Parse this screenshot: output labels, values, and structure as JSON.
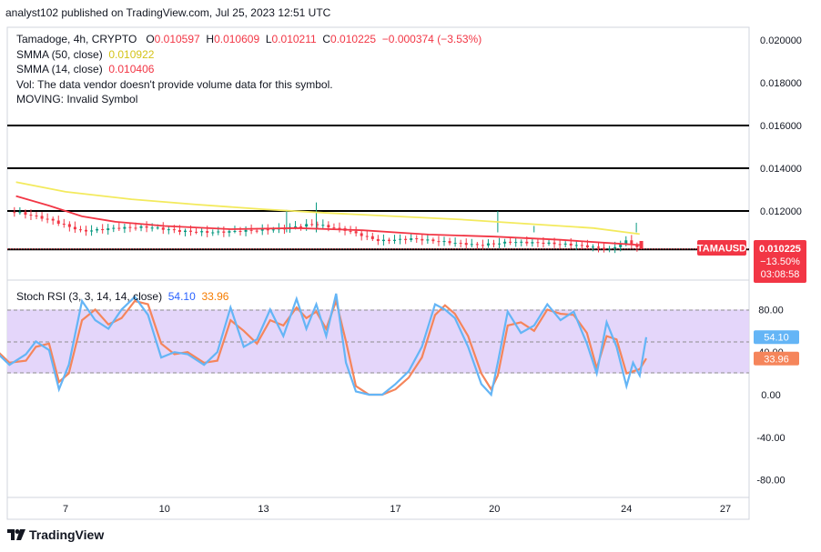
{
  "header": {
    "published": "analyst102 published on TradingView.com, Jul 25, 2023 12:51 UTC"
  },
  "legend": {
    "symbol": "Tamadoge, 4h, CRYPTO",
    "open_label": "O",
    "open": "0.010597",
    "high_label": "H",
    "high": "0.010609",
    "low_label": "L",
    "low": "0.010211",
    "close_label": "C",
    "close": "0.010225",
    "change": "−0.000374 (−3.53%)",
    "smma50_label": "SMMA (50, close)",
    "smma50_value": "0.010922",
    "smma14_label": "SMMA (14, close)",
    "smma14_value": "0.010406",
    "vol_note": "Vol: The data vendor doesn't provide volume data for this symbol.",
    "moving_note": "MOVING: Invalid Symbol",
    "stoch_label": "Stoch RSI (3, 3, 14, 14, close)",
    "stoch_k": "54.10",
    "stoch_d": "33.96"
  },
  "price_tag": {
    "symbol": "TAMAUSD",
    "price": "0.010225",
    "change_pct": "−13.50%",
    "countdown": "03:08:58"
  },
  "branding": {
    "logo_text": "TradingView"
  },
  "colors": {
    "up": "#089981",
    "down": "#f23645",
    "smma50": "#f3ea5d",
    "smma14": "#f23645",
    "stoch_k": "#64b5f6",
    "stoch_d": "#f5855b",
    "stoch_band": "#e1d1f9",
    "hline": "#000000"
  },
  "chart_data": [
    {
      "type": "line",
      "title": "Tamadoge, 4h, CRYPTO",
      "x_ticks": [
        "7",
        "10",
        "13",
        "17",
        "20",
        "24",
        "27"
      ],
      "y_ticks": [
        "0.020000",
        "0.018000",
        "0.016000",
        "0.014000",
        "0.012000"
      ],
      "ylim": [
        0.0095,
        0.0205
      ],
      "horizontal_lines": [
        0.016,
        0.014,
        0.012,
        0.0102
      ],
      "series": [
        {
          "name": "SMMA (50, close)",
          "color": "#f3ea5d",
          "x": [
            5.5,
            7,
            9,
            11,
            13,
            15,
            17,
            19,
            21,
            23,
            24.4
          ],
          "values": [
            0.01335,
            0.0129,
            0.01255,
            0.0123,
            0.01208,
            0.0119,
            0.01175,
            0.0116,
            0.0114,
            0.0112,
            0.01092
          ]
        },
        {
          "name": "SMMA (14, close)",
          "color": "#f23645",
          "x": [
            5.5,
            6.5,
            7.5,
            8.5,
            10,
            12,
            14,
            16,
            18,
            20,
            22,
            23.5,
            24.4
          ],
          "values": [
            0.0127,
            0.01225,
            0.01175,
            0.0115,
            0.0113,
            0.01115,
            0.0112,
            0.0111,
            0.0109,
            0.0108,
            0.01065,
            0.0105,
            0.01041
          ]
        },
        {
          "name": "Price",
          "color": "#089981",
          "x": [
            5.5,
            6.5,
            7.5,
            8.5,
            9.5,
            10.5,
            11.5,
            12.5,
            13.5,
            14.5,
            15.5,
            16.5,
            17.5,
            18.5,
            19.5,
            20.5,
            21.5,
            22.5,
            23.5,
            24,
            24.4
          ],
          "values": [
            0.01195,
            0.0116,
            0.01105,
            0.0112,
            0.01125,
            0.01105,
            0.011,
            0.01108,
            0.01115,
            0.0114,
            0.0111,
            0.0106,
            0.0107,
            0.01055,
            0.0104,
            0.01055,
            0.0105,
            0.0104,
            0.0102,
            0.0106,
            0.010225
          ]
        }
      ]
    },
    {
      "type": "line",
      "title": "Stoch RSI (3, 3, 14, 14, close)",
      "y_ticks": [
        "80.00",
        "40.00",
        "0.00",
        "-40.00",
        "-80.00"
      ],
      "ylim": [
        -95,
        105
      ],
      "bands": [
        20,
        80
      ],
      "series": [
        {
          "name": "K",
          "color": "#64b5f6",
          "x": [
            4.9,
            5.3,
            5.8,
            6.1,
            6.5,
            6.8,
            7.1,
            7.5,
            7.9,
            8.3,
            8.7,
            9.1,
            9.5,
            9.9,
            10.3,
            10.7,
            11.2,
            11.6,
            12,
            12.4,
            12.8,
            13.2,
            13.6,
            14,
            14.3,
            14.6,
            14.9,
            15.2,
            15.5,
            15.8,
            16.2,
            16.6,
            17,
            17.4,
            17.8,
            18.2,
            18.5,
            18.8,
            19.2,
            19.6,
            19.9,
            20.1,
            20.4,
            20.8,
            21.2,
            21.6,
            22,
            22.4,
            22.8,
            23.1,
            23.4,
            23.7,
            24,
            24.2,
            24.4,
            24.6
          ],
          "values": [
            40,
            28,
            38,
            50,
            42,
            5,
            28,
            88,
            70,
            62,
            80,
            92,
            75,
            35,
            40,
            38,
            28,
            40,
            82,
            45,
            52,
            80,
            55,
            90,
            62,
            85,
            55,
            95,
            30,
            3,
            0,
            0,
            10,
            22,
            45,
            85,
            80,
            72,
            45,
            10,
            0,
            30,
            78,
            58,
            65,
            85,
            70,
            78,
            48,
            20,
            68,
            45,
            8,
            30,
            18,
            54
          ]
        },
        {
          "name": "D",
          "color": "#f5855b",
          "x": [
            4.9,
            5.3,
            5.8,
            6.1,
            6.5,
            6.8,
            7.1,
            7.5,
            7.9,
            8.3,
            8.7,
            9.1,
            9.5,
            9.9,
            10.3,
            10.7,
            11.2,
            11.6,
            12,
            12.4,
            12.8,
            13.2,
            13.6,
            14,
            14.3,
            14.6,
            14.9,
            15.2,
            15.5,
            15.8,
            16.2,
            16.6,
            17,
            17.4,
            17.8,
            18.2,
            18.5,
            18.8,
            19.2,
            19.6,
            19.9,
            20.1,
            20.4,
            20.8,
            21.2,
            21.6,
            22,
            22.4,
            22.8,
            23.1,
            23.4,
            23.7,
            24,
            24.2,
            24.4,
            24.6
          ],
          "values": [
            42,
            30,
            32,
            45,
            48,
            12,
            20,
            70,
            80,
            66,
            72,
            88,
            85,
            48,
            38,
            40,
            30,
            32,
            70,
            60,
            48,
            70,
            65,
            82,
            72,
            78,
            62,
            88,
            50,
            8,
            0,
            0,
            5,
            16,
            35,
            75,
            84,
            76,
            55,
            20,
            5,
            18,
            65,
            68,
            60,
            80,
            76,
            75,
            58,
            25,
            55,
            52,
            20,
            22,
            24,
            34
          ]
        }
      ]
    }
  ]
}
